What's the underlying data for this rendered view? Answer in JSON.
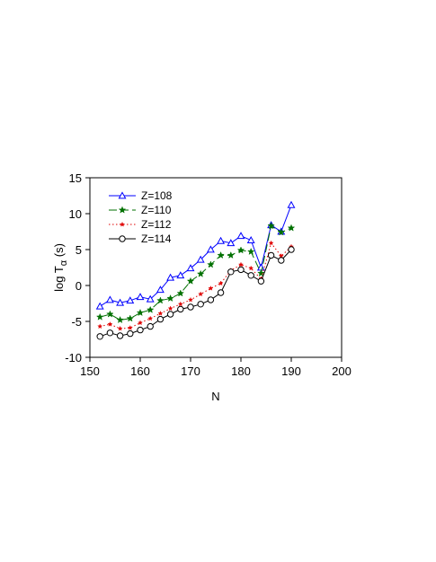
{
  "chart_data": {
    "type": "line",
    "xlabel": "N",
    "ylabel_main": "log T",
    "ylabel_sub": "α",
    "ylabel_suffix": " (s)",
    "xlim": [
      150,
      200
    ],
    "ylim": [
      -10,
      15
    ],
    "xticks": [
      150,
      160,
      170,
      180,
      190,
      200
    ],
    "yticks": [
      -10,
      -5,
      0,
      5,
      10,
      15
    ],
    "grid": false,
    "legend_position": "top-left",
    "series": [
      {
        "name": "Z=108",
        "color": "#0000ff",
        "dash": "solid",
        "marker": "triangle-open",
        "x": [
          152,
          154,
          156,
          158,
          160,
          162,
          164,
          166,
          168,
          170,
          172,
          174,
          176,
          178,
          180,
          182,
          184,
          186,
          188,
          190
        ],
        "y": [
          -2.9,
          -2.0,
          -2.4,
          -2.1,
          -1.6,
          -1.9,
          -0.6,
          1.1,
          1.4,
          2.4,
          3.6,
          5.0,
          6.2,
          5.9,
          6.9,
          6.3,
          2.5,
          8.4,
          7.5,
          11.2
        ]
      },
      {
        "name": "Z=110",
        "color": "#007000",
        "dash": "longdash",
        "marker": "star",
        "x": [
          152,
          154,
          156,
          158,
          160,
          162,
          164,
          166,
          168,
          170,
          172,
          174,
          176,
          178,
          180,
          182,
          184,
          186,
          188,
          190
        ],
        "y": [
          -4.4,
          -4.0,
          -4.8,
          -4.6,
          -3.8,
          -3.4,
          -2.1,
          -1.8,
          -1.1,
          0.6,
          1.6,
          2.9,
          4.2,
          4.2,
          4.9,
          4.7,
          1.7,
          8.3,
          7.4,
          8.0
        ]
      },
      {
        "name": "Z=112",
        "color": "#e00000",
        "dash": "dot",
        "marker": "small-star",
        "x": [
          152,
          154,
          156,
          158,
          160,
          162,
          164,
          166,
          168,
          170,
          172,
          174,
          176,
          178,
          180,
          182,
          184,
          186,
          188,
          190
        ],
        "y": [
          -5.7,
          -5.4,
          -6.0,
          -5.9,
          -5.2,
          -4.6,
          -3.9,
          -3.2,
          -2.6,
          -2.0,
          -1.2,
          -0.4,
          0.3,
          2.1,
          2.9,
          2.4,
          0.9,
          5.9,
          4.1,
          5.4
        ]
      },
      {
        "name": "Z=114",
        "color": "#000000",
        "dash": "solid",
        "marker": "circle-open",
        "x": [
          152,
          154,
          156,
          158,
          160,
          162,
          164,
          166,
          168,
          170,
          172,
          174,
          176,
          178,
          180,
          182,
          184,
          186,
          188,
          190
        ],
        "y": [
          -7.1,
          -6.6,
          -7.0,
          -6.7,
          -6.2,
          -5.7,
          -4.7,
          -4.0,
          -3.3,
          -3.0,
          -2.6,
          -2.0,
          -1.0,
          1.9,
          2.2,
          1.4,
          0.6,
          4.2,
          3.5,
          5.0
        ]
      }
    ]
  }
}
